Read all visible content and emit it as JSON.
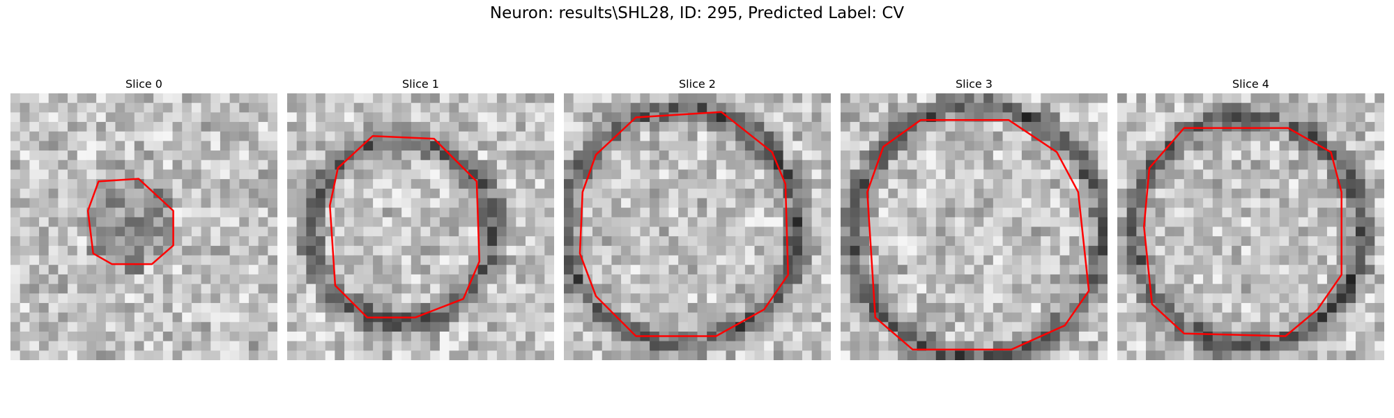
{
  "figure": {
    "suptitle": "Neuron: results\\SHL28, ID: 295, Predicted Label: CV",
    "contour_color": "#ff0000",
    "colormap": "gray"
  },
  "panels": [
    {
      "title": "Slice 0",
      "image": "slice-0-image"
    },
    {
      "title": "Slice 1",
      "image": "slice-1-image"
    },
    {
      "title": "Slice 2",
      "image": "slice-2-image"
    },
    {
      "title": "Slice 3",
      "image": "slice-3-image"
    },
    {
      "title": "Slice 4",
      "image": "slice-4-image"
    }
  ]
}
